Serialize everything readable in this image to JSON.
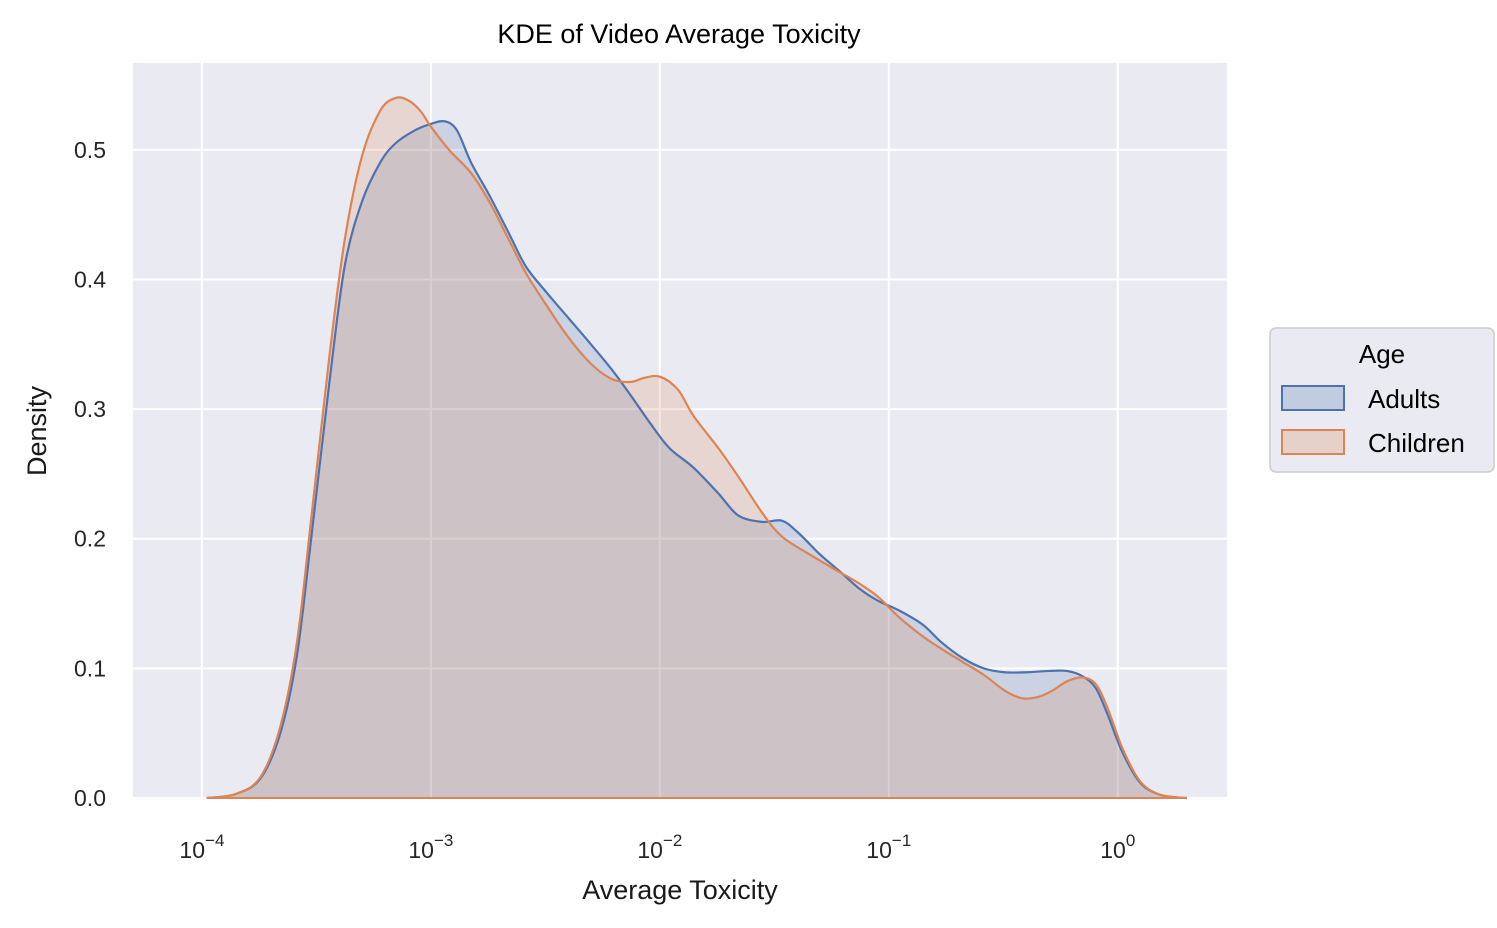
{
  "chart_data": {
    "type": "area",
    "kind": "kde",
    "title": "KDE of Video Average Toxicity",
    "xlabel": "Average Toxicity",
    "ylabel": "Density",
    "x_scale": "log",
    "xlim": [
      5e-05,
      3.0
    ],
    "ylim": [
      0,
      0.567
    ],
    "x_ticks": [
      {
        "value": 0.0001,
        "base": "10",
        "exp": "−4"
      },
      {
        "value": 0.001,
        "base": "10",
        "exp": "−3"
      },
      {
        "value": 0.01,
        "base": "10",
        "exp": "−2"
      },
      {
        "value": 0.1,
        "base": "10",
        "exp": "−1"
      },
      {
        "value": 1,
        "base": "10",
        "exp": "0"
      }
    ],
    "y_ticks": [
      "0.0",
      "0.1",
      "0.2",
      "0.3",
      "0.4",
      "0.5"
    ],
    "grid": true,
    "background": "#eaeaf2",
    "legend": {
      "title": "Age",
      "placement": "right"
    },
    "series": [
      {
        "name": "Adults",
        "color": "#4c72b0",
        "x": [
          0.000105,
          0.00014,
          0.00018,
          0.00022,
          0.00026,
          0.0003,
          0.00036,
          0.00042,
          0.0005,
          0.0006,
          0.0007,
          0.00085,
          0.001,
          0.00115,
          0.0013,
          0.0015,
          0.0018,
          0.0022,
          0.0026,
          0.0032,
          0.004,
          0.005,
          0.0062,
          0.0075,
          0.009,
          0.011,
          0.014,
          0.018,
          0.022,
          0.028,
          0.034,
          0.04,
          0.05,
          0.06,
          0.075,
          0.09,
          0.11,
          0.14,
          0.17,
          0.21,
          0.26,
          0.32,
          0.4,
          0.5,
          0.6,
          0.7,
          0.8,
          0.9,
          1.05,
          1.25,
          1.5,
          1.8,
          2.0
        ],
        "y": [
          0.0,
          0.003,
          0.015,
          0.05,
          0.11,
          0.2,
          0.32,
          0.41,
          0.46,
          0.49,
          0.505,
          0.515,
          0.52,
          0.522,
          0.515,
          0.49,
          0.465,
          0.435,
          0.41,
          0.39,
          0.37,
          0.35,
          0.33,
          0.31,
          0.29,
          0.27,
          0.255,
          0.235,
          0.218,
          0.213,
          0.214,
          0.205,
          0.188,
          0.176,
          0.161,
          0.152,
          0.145,
          0.134,
          0.12,
          0.108,
          0.1,
          0.097,
          0.097,
          0.098,
          0.098,
          0.094,
          0.085,
          0.065,
          0.035,
          0.012,
          0.003,
          0.0005,
          0.0
        ]
      },
      {
        "name": "Children",
        "color": "#dd8452",
        "x": [
          0.000105,
          0.00014,
          0.00018,
          0.00022,
          0.00026,
          0.0003,
          0.00036,
          0.00042,
          0.0005,
          0.0006,
          0.0007,
          0.0008,
          0.0009,
          0.001,
          0.0012,
          0.0015,
          0.0018,
          0.0022,
          0.0026,
          0.0032,
          0.004,
          0.005,
          0.0062,
          0.0075,
          0.0085,
          0.01,
          0.012,
          0.014,
          0.018,
          0.022,
          0.028,
          0.034,
          0.045,
          0.06,
          0.075,
          0.09,
          0.11,
          0.14,
          0.17,
          0.21,
          0.26,
          0.32,
          0.38,
          0.45,
          0.52,
          0.6,
          0.7,
          0.8,
          0.9,
          1.05,
          1.25,
          1.5,
          1.8,
          2.0
        ],
        "y": [
          0.0,
          0.003,
          0.016,
          0.055,
          0.12,
          0.215,
          0.34,
          0.43,
          0.495,
          0.53,
          0.54,
          0.538,
          0.53,
          0.518,
          0.5,
          0.482,
          0.46,
          0.43,
          0.405,
          0.38,
          0.355,
          0.335,
          0.323,
          0.321,
          0.324,
          0.325,
          0.315,
          0.295,
          0.27,
          0.248,
          0.22,
          0.202,
          0.188,
          0.175,
          0.165,
          0.155,
          0.14,
          0.125,
          0.115,
          0.105,
          0.095,
          0.083,
          0.077,
          0.078,
          0.083,
          0.09,
          0.093,
          0.088,
          0.07,
          0.038,
          0.013,
          0.003,
          0.0005,
          0.0
        ]
      }
    ]
  }
}
